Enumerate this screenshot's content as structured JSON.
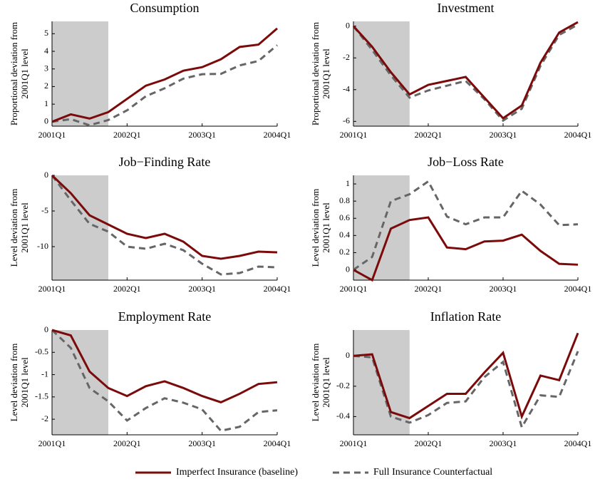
{
  "chart_data": [
    {
      "type": "line",
      "title": "Consumption",
      "ylabel": [
        "Proportional deviation from",
        "2001Q1 level"
      ],
      "categories": [
        "2001Q1",
        null,
        null,
        null,
        "2002Q1",
        null,
        null,
        null,
        "2003Q1",
        null,
        null,
        null,
        "2004Q1"
      ],
      "shaded": [
        0,
        3
      ],
      "ylim": [
        -0.25,
        5.7
      ],
      "yticks": [
        0,
        1,
        2,
        3,
        4,
        5
      ],
      "series": [
        {
          "values": [
            0,
            0.42,
            0.18,
            0.55,
            1.3,
            2.05,
            2.4,
            2.9,
            3.1,
            3.55,
            4.25,
            4.38,
            5.3
          ]
        },
        {
          "values": [
            0,
            0.15,
            -0.2,
            0.1,
            0.65,
            1.45,
            1.9,
            2.45,
            2.7,
            2.72,
            3.2,
            3.45,
            4.35
          ]
        }
      ]
    },
    {
      "type": "line",
      "title": "Investment",
      "ylabel": [
        "Proportional deviation from",
        "2001Q1 level"
      ],
      "categories": [
        "2001Q1",
        null,
        null,
        null,
        "2002Q1",
        null,
        null,
        null,
        "2003Q1",
        null,
        null,
        null,
        "2004Q1"
      ],
      "shaded": [
        0,
        3
      ],
      "ylim": [
        -6.3,
        0.3
      ],
      "yticks": [
        0,
        -2,
        -4,
        -6
      ],
      "series": [
        {
          "values": [
            0,
            -1.3,
            -2.9,
            -4.3,
            -3.7,
            -3.45,
            -3.2,
            -4.5,
            -5.8,
            -5.0,
            -2.3,
            -0.4,
            0.25
          ]
        },
        {
          "values": [
            0,
            -1.5,
            -3.1,
            -4.5,
            -4.05,
            -3.75,
            -3.45,
            -4.6,
            -5.95,
            -5.2,
            -2.5,
            -0.55,
            0.1
          ]
        }
      ]
    },
    {
      "type": "line",
      "title": "Job−Finding Rate",
      "ylabel": [
        "Level deviation from",
        "2001Q1 level"
      ],
      "categories": [
        "2001Q1",
        null,
        null,
        null,
        "2002Q1",
        null,
        null,
        null,
        "2003Q1",
        null,
        null,
        null,
        "2004Q1"
      ],
      "shaded": [
        0,
        3
      ],
      "ylim": [
        -14.7,
        0
      ],
      "yticks": [
        0,
        -5,
        -10
      ],
      "series": [
        {
          "values": [
            0,
            -2.5,
            -5.6,
            -6.9,
            -8.2,
            -8.8,
            -8.2,
            -9.3,
            -11.3,
            -11.7,
            -11.3,
            -10.7,
            -10.8
          ]
        },
        {
          "values": [
            0,
            -3.5,
            -6.8,
            -7.9,
            -10.0,
            -10.3,
            -9.6,
            -10.5,
            -12.4,
            -13.9,
            -13.7,
            -12.8,
            -12.9
          ]
        }
      ]
    },
    {
      "type": "line",
      "title": "Job−Loss Rate",
      "ylabel": [
        "Level deviation from",
        "2001Q1 level"
      ],
      "categories": [
        "2001Q1",
        null,
        null,
        null,
        "2002Q1",
        null,
        null,
        null,
        "2003Q1",
        null,
        null,
        null,
        "2004Q1"
      ],
      "shaded": [
        0,
        3
      ],
      "ylim": [
        -0.12,
        1.1
      ],
      "yticks": [
        0,
        0.2,
        0.4,
        0.6,
        0.8,
        1
      ],
      "series": [
        {
          "values": [
            0,
            -0.12,
            0.48,
            0.58,
            0.61,
            0.26,
            0.24,
            0.33,
            0.34,
            0.41,
            0.22,
            0.07,
            0.06
          ]
        },
        {
          "values": [
            0,
            0.15,
            0.8,
            0.88,
            1.03,
            0.62,
            0.53,
            0.61,
            0.61,
            0.92,
            0.76,
            0.52,
            0.53
          ]
        }
      ]
    },
    {
      "type": "line",
      "title": "Employment Rate",
      "ylabel": [
        "Level deviation from",
        "2001Q1 level"
      ],
      "categories": [
        "2001Q1",
        null,
        null,
        null,
        "2002Q1",
        null,
        null,
        null,
        "2003Q1",
        null,
        null,
        null,
        "2004Q1"
      ],
      "shaded": [
        0,
        3
      ],
      "ylim": [
        -2.35,
        0
      ],
      "yticks": [
        0,
        -0.5,
        -1,
        -1.5,
        -2
      ],
      "series": [
        {
          "values": [
            0,
            -0.12,
            -0.93,
            -1.3,
            -1.48,
            -1.26,
            -1.15,
            -1.3,
            -1.48,
            -1.62,
            -1.43,
            -1.21,
            -1.17
          ]
        },
        {
          "values": [
            0,
            -0.4,
            -1.3,
            -1.6,
            -2.03,
            -1.75,
            -1.53,
            -1.63,
            -1.78,
            -2.26,
            -2.17,
            -1.84,
            -1.8
          ]
        }
      ]
    },
    {
      "type": "line",
      "title": "Inflation Rate",
      "ylabel": [
        "Level deviation from",
        "2001Q1 level"
      ],
      "categories": [
        "2001Q1",
        null,
        null,
        null,
        "2002Q1",
        null,
        null,
        null,
        "2003Q1",
        null,
        null,
        null,
        "2004Q1"
      ],
      "shaded": [
        0,
        3
      ],
      "ylim": [
        -0.52,
        0.17
      ],
      "yticks": [
        0,
        -0.2,
        -0.4
      ],
      "series": [
        {
          "values": [
            0,
            0.01,
            -0.37,
            -0.41,
            -0.33,
            -0.25,
            -0.25,
            -0.11,
            0.02,
            -0.4,
            -0.13,
            -0.16,
            0.15
          ]
        },
        {
          "values": [
            0,
            -0.01,
            -0.4,
            -0.44,
            -0.39,
            -0.31,
            -0.3,
            -0.14,
            -0.04,
            -0.47,
            -0.26,
            -0.27,
            0.03
          ]
        }
      ]
    }
  ],
  "legend": [
    {
      "name": "Imperfect Insurance (baseline)",
      "color": "#7b0a0a",
      "dash": "none"
    },
    {
      "name": "Full Insurance Counterfactual",
      "color": "#666666",
      "dash": "9,6"
    }
  ]
}
